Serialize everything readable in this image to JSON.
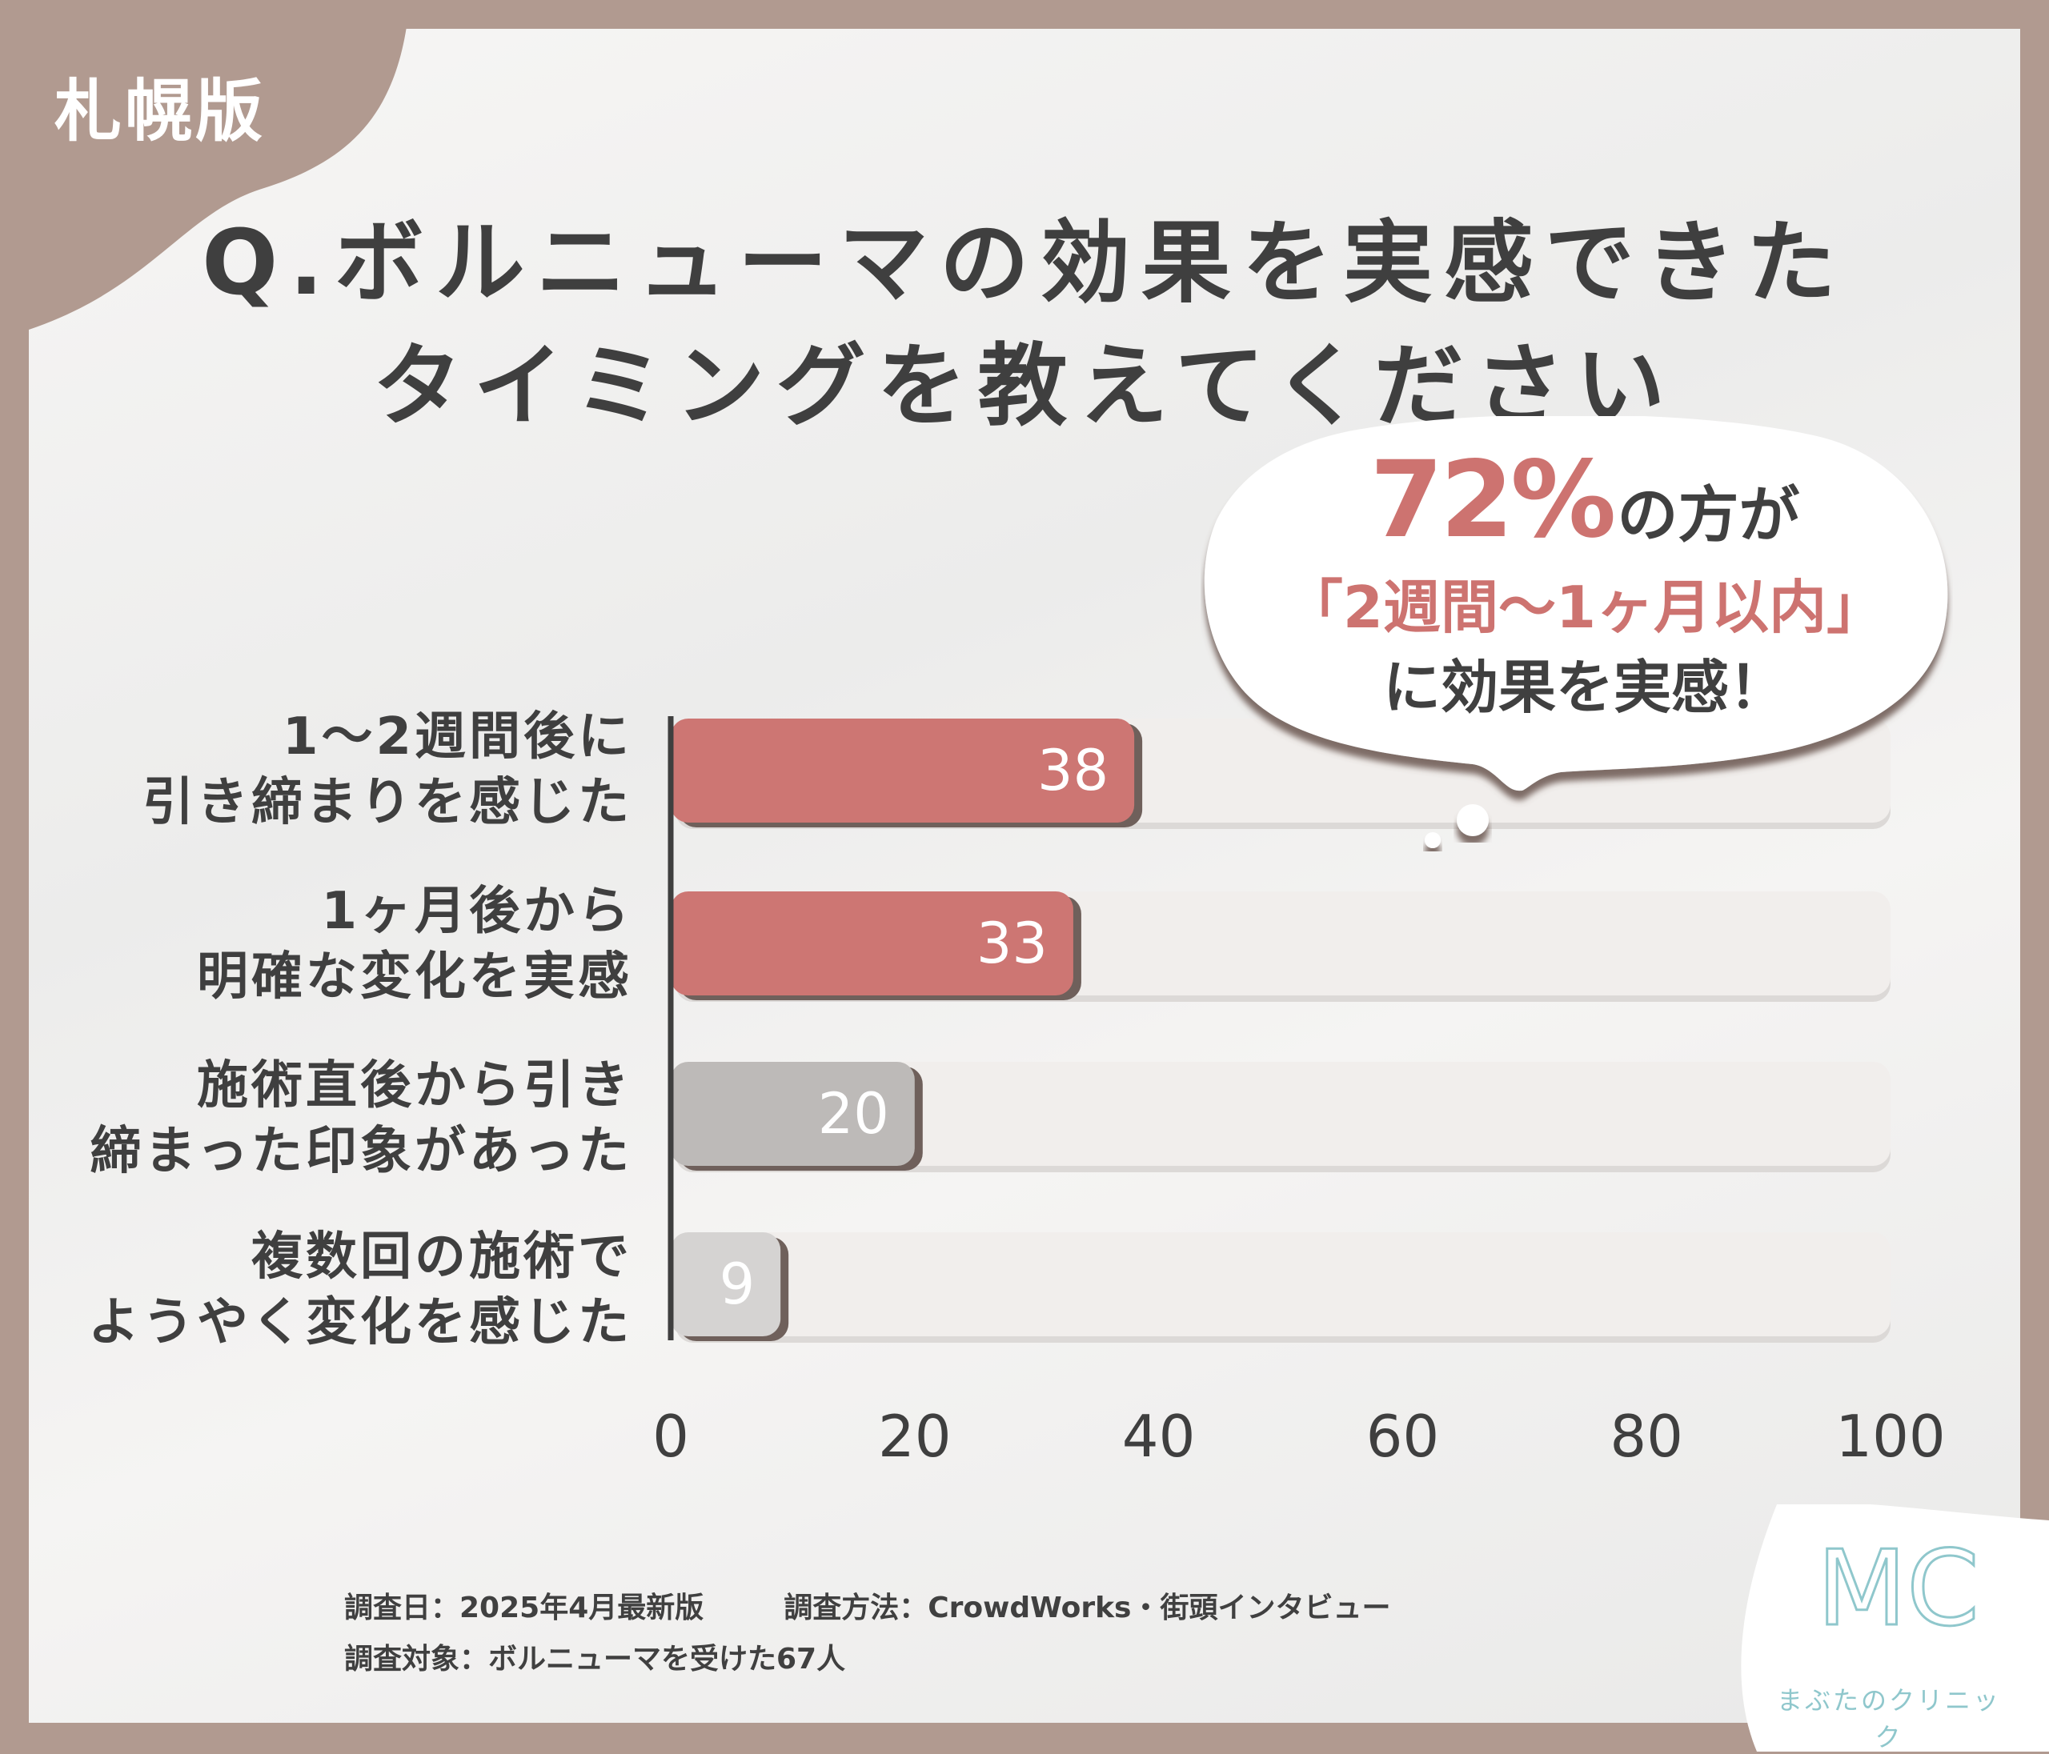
{
  "badge": "札幌版",
  "title": {
    "line1": "Q.ボルニューマの効果を実感できた",
    "line2": "タイミングを教えてください"
  },
  "callout": {
    "percent": "72%",
    "line1_rest": "の方が",
    "line2": "「2週間〜1ヶ月以内」",
    "line3": "に効果を実感！"
  },
  "chart_data": {
    "type": "bar",
    "orientation": "horizontal",
    "categories": [
      [
        "1〜2週間後に",
        "引き締まりを感じた"
      ],
      [
        "1ヶ月後から",
        "明確な変化を実感"
      ],
      [
        "施術直後から引き",
        "締まった印象があった"
      ],
      [
        "複数回の施術で",
        "ようやく変化を感じた"
      ]
    ],
    "values": [
      38,
      33,
      20,
      9
    ],
    "bar_colors": [
      "#cd7673",
      "#cd7673",
      "#bdbab8",
      "#d5d3d2"
    ],
    "track_color": "#f1eeec",
    "xlim": [
      0,
      100
    ],
    "xticks": [
      "0",
      "20",
      "40",
      "60",
      "80",
      "100"
    ],
    "title": "Q.ボルニューマの効果を実感できたタイミングを教えてください",
    "xlabel": "",
    "ylabel": ""
  },
  "footer": {
    "date": "調査日：2025年4月最新版",
    "method": "調査方法：CrowdWorks・街頭インタビュー",
    "target": "調査対象：ボルニューマを受けた67人"
  },
  "logo": {
    "mark": "MC",
    "name": "まぶたのクリニック"
  },
  "colors": {
    "frame": "#b19a90",
    "accent": "#cd7370",
    "text": "#3f3f3f",
    "logo": "#8fc7cc"
  }
}
